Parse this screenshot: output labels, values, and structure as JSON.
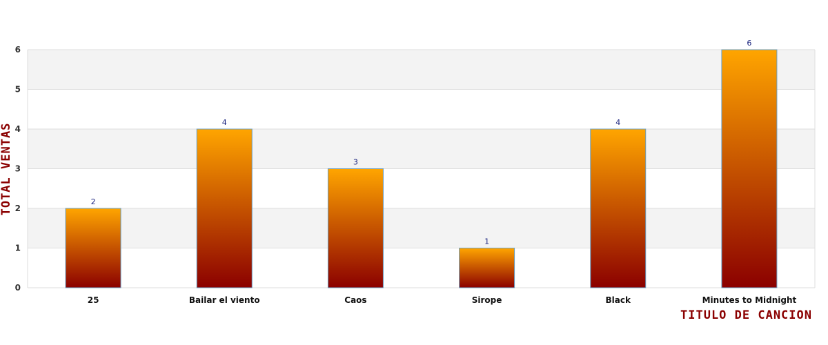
{
  "chart_data": {
    "type": "bar",
    "categories": [
      "25",
      "Bailar el viento",
      "Caos",
      "Sirope",
      "Black",
      "Minutes to Midnight"
    ],
    "values": [
      2,
      4,
      3,
      1,
      4,
      6
    ],
    "data_labels": [
      "2",
      "4",
      "3",
      "1",
      "4",
      "6"
    ],
    "xlabel": "TITULO DE CANCION",
    "ylabel": "TOTAL VENTAS",
    "ylim": [
      0,
      6
    ],
    "yticks": [
      0,
      1,
      2,
      3,
      4,
      5,
      6
    ],
    "grid": true,
    "colors": {
      "bar_top": "#ffa500",
      "bar_bottom": "#8b0000",
      "bar_border": "#6a9fc4",
      "band": "#f3f3f3",
      "grid": "#dddddd",
      "axis_title": "#8b0000",
      "data_label": "#1a237e"
    }
  }
}
